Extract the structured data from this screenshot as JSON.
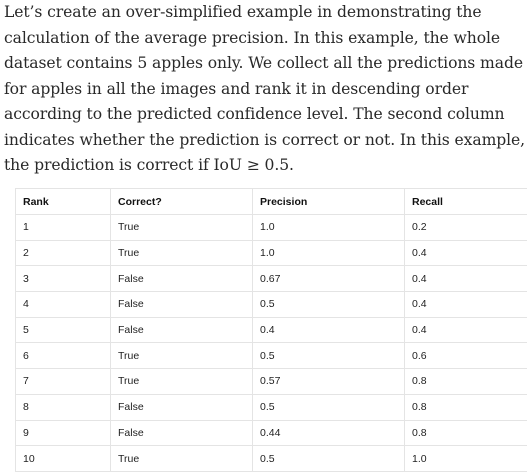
{
  "paragraph": "Let’s create an over-simplified example in demonstrating the calculation of the average precision. In this example, the whole dataset contains 5 apples only. We collect all the predictions made for apples in all the images and rank it in descending order according to the predicted confidence level. The second column indicates whether the prediction is correct or not. In this example, the prediction is correct if IoU ≥ 0.5.",
  "table": {
    "headers": [
      "Rank",
      "Correct?",
      "Precision",
      "Recall"
    ],
    "rows": [
      [
        "1",
        "True",
        "1.0",
        "0.2"
      ],
      [
        "2",
        "True",
        "1.0",
        "0.4"
      ],
      [
        "3",
        "False",
        "0.67",
        "0.4"
      ],
      [
        "4",
        "False",
        "0.5",
        "0.4"
      ],
      [
        "5",
        "False",
        "0.4",
        "0.4"
      ],
      [
        "6",
        "True",
        "0.5",
        "0.6"
      ],
      [
        "7",
        "True",
        "0.57",
        "0.8"
      ],
      [
        "8",
        "False",
        "0.5",
        "0.8"
      ],
      [
        "9",
        "False",
        "0.44",
        "0.8"
      ],
      [
        "10",
        "True",
        "0.5",
        "1.0"
      ]
    ]
  }
}
